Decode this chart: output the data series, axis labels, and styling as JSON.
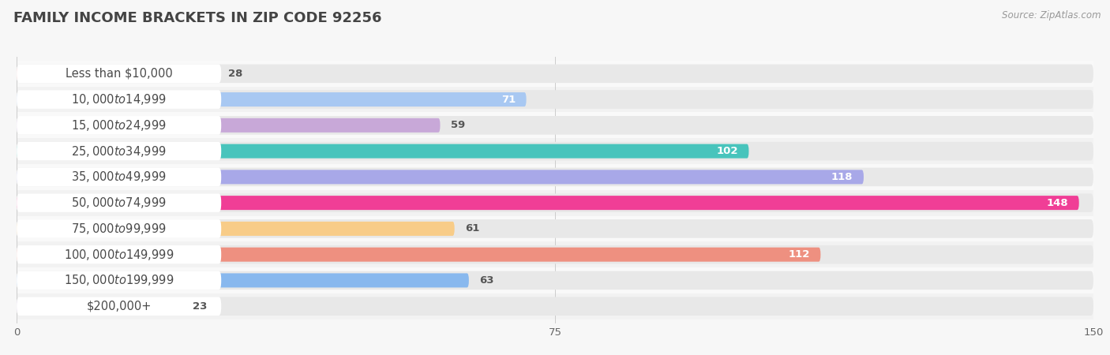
{
  "title": "FAMILY INCOME BRACKETS IN ZIP CODE 92256",
  "source": "Source: ZipAtlas.com",
  "categories": [
    "Less than $10,000",
    "$10,000 to $14,999",
    "$15,000 to $24,999",
    "$25,000 to $34,999",
    "$35,000 to $49,999",
    "$50,000 to $74,999",
    "$75,000 to $99,999",
    "$100,000 to $149,999",
    "$150,000 to $199,999",
    "$200,000+"
  ],
  "values": [
    28,
    71,
    59,
    102,
    118,
    148,
    61,
    112,
    63,
    23
  ],
  "bar_colors": [
    "#F2A8A8",
    "#A8C8F2",
    "#C8A8D8",
    "#48C4BC",
    "#A8A8E8",
    "#F03E96",
    "#F8CC88",
    "#EE9080",
    "#88B8EE",
    "#C8B0D8"
  ],
  "xlim": [
    0,
    150
  ],
  "xticks": [
    0,
    75,
    150
  ],
  "bg_color": "#f7f7f7",
  "bar_bg_color": "#e8e8e8",
  "bar_bg_color2": "#f0f0f0",
  "title_fontsize": 13,
  "label_fontsize": 10.5,
  "value_fontsize": 9.5,
  "label_bg_color": "#ffffff",
  "value_threshold": 35
}
